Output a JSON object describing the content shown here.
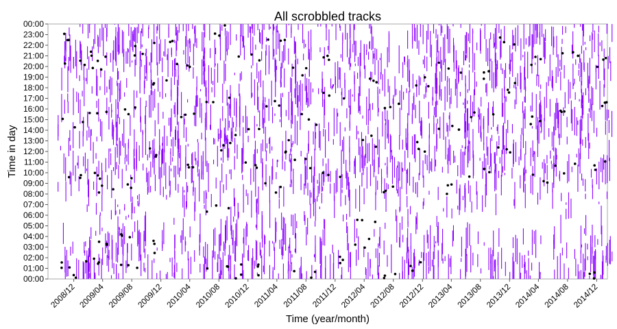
{
  "chart_data": {
    "type": "scatter",
    "title": "All scrobbled tracks",
    "xlabel": "Time (year/month)",
    "ylabel": "Time in day",
    "x_range": [
      "2008-08-15",
      "2015-01-15"
    ],
    "y_range": [
      0,
      24
    ],
    "x_ticks": [
      "2008/12",
      "2009/04",
      "2009/08",
      "2009/12",
      "2010/04",
      "2010/08",
      "2010/12",
      "2011/04",
      "2011/08",
      "2011/12",
      "2012/04",
      "2012/08",
      "2012/12",
      "2013/04",
      "2013/08",
      "2013/12",
      "2014/04",
      "2014/08",
      "2014/12"
    ],
    "y_ticks": [
      "00:00",
      "01:00",
      "02:00",
      "03:00",
      "04:00",
      "05:00",
      "06:00",
      "07:00",
      "08:00",
      "09:00",
      "10:00",
      "11:00",
      "12:00",
      "13:00",
      "14:00",
      "15:00",
      "16:00",
      "17:00",
      "18:00",
      "19:00",
      "20:00",
      "21:00",
      "22:00",
      "23:00",
      "00:00"
    ],
    "grid": false,
    "series": [
      {
        "color": "#8B00FF",
        "points": [
          {
            "month": "2008/12",
            "hours": [
              1.0,
              9.5,
              14.5,
              20.0,
              22.5
            ]
          },
          {
            "month": "2009/04",
            "hours": [
              0.5,
              2.0,
              8.5,
              11.5,
              15.5,
              19.5,
              23.0
            ]
          },
          {
            "month": "2009/08",
            "hours": [
              1.5,
              4.5,
              9.0,
              12.0,
              16.5,
              20.5,
              22.0
            ]
          },
          {
            "month": "2009/12",
            "hours": [
              0.5,
              8.5,
              11.0,
              14.5,
              18.0,
              21.5,
              23.5
            ]
          },
          {
            "month": "2010/04",
            "hours": [
              1.0,
              8.0,
              10.5,
              13.5,
              17.5,
              20.5,
              23.0
            ]
          },
          {
            "month": "2010/08",
            "hours": [
              0.5,
              2.0,
              8.5,
              12.0,
              15.5,
              19.0,
              22.5
            ]
          },
          {
            "month": "2010/12",
            "hours": [
              1.0,
              3.0,
              8.5,
              11.5,
              16.0,
              20.0,
              23.5
            ]
          },
          {
            "month": "2011/04",
            "hours": [
              0.5,
              2.5,
              9.5,
              12.5,
              17.0,
              21.0,
              23.0
            ]
          },
          {
            "month": "2011/08",
            "hours": [
              1.5,
              6.5,
              10.0,
              14.0,
              18.5,
              22.0
            ]
          },
          {
            "month": "2011/12",
            "hours": [
              0.5,
              7.0,
              11.0,
              15.0,
              19.5,
              23.5
            ]
          },
          {
            "month": "2012/04",
            "hours": [
              1.0,
              8.5,
              12.5,
              16.5,
              20.5,
              23.0
            ]
          },
          {
            "month": "2012/08",
            "hours": [
              0.5,
              7.5,
              11.5,
              15.0,
              19.0
            ]
          },
          {
            "month": "2012/12",
            "hours": [
              0.5,
              2.0,
              8.0,
              12.0,
              16.0,
              19.5,
              22.5
            ]
          },
          {
            "month": "2013/04",
            "hours": [
              1.0,
              8.5,
              12.5,
              15.5,
              18.5,
              21.0
            ]
          },
          {
            "month": "2013/08",
            "hours": [
              0.5,
              9.0,
              12.0,
              15.5,
              18.0,
              21.5
            ]
          },
          {
            "month": "2013/12",
            "hours": [
              0.5,
              8.5,
              11.5,
              15.0,
              19.0,
              22.0
            ]
          },
          {
            "month": "2014/04",
            "hours": [
              0.5,
              9.0,
              12.5,
              16.0,
              19.5,
              22.5
            ]
          },
          {
            "month": "2014/08",
            "hours": [
              0.5,
              8.5,
              12.0,
              15.5,
              19.0,
              21.5
            ]
          },
          {
            "month": "2014/12",
            "hours": [
              0.5,
              1.5,
              10.0,
              14.0,
              17.5,
              21.0
            ]
          }
        ]
      },
      {
        "color": "#000000",
        "points": [
          {
            "month": "2008/12",
            "hours": [
              0.5,
              1.5,
              10.0,
              14.5,
              20.5,
              23.0
            ]
          },
          {
            "month": "2009/04",
            "hours": [
              1.5,
              3.0,
              8.5,
              10.0,
              15.5,
              20.0,
              21.5
            ]
          },
          {
            "month": "2009/08",
            "hours": [
              1.5,
              4.5,
              9.0,
              16.0,
              21.5
            ]
          },
          {
            "month": "2009/12",
            "hours": [
              3.0,
              12.0,
              18.5,
              22.0
            ]
          },
          {
            "month": "2010/04",
            "hours": [
              11.0,
              15.5,
              20.5
            ]
          },
          {
            "month": "2010/08",
            "hours": [
              1.0,
              6.5,
              12.5,
              17.0,
              23.5
            ]
          },
          {
            "month": "2010/12",
            "hours": [
              0.5,
              1.5,
              10.5,
              14.0,
              21.0
            ]
          },
          {
            "month": "2011/04",
            "hours": [
              8.5,
              12.5,
              16.5,
              22.0
            ]
          },
          {
            "month": "2011/08",
            "hours": [
              0.5,
              11.0,
              15.0,
              19.5
            ]
          },
          {
            "month": "2011/12",
            "hours": [
              1.5,
              10.0,
              17.5,
              21.0
            ]
          },
          {
            "month": "2012/04",
            "hours": [
              3.5,
              5.5,
              13.0,
              19.0
            ]
          },
          {
            "month": "2012/08",
            "hours": [
              0.5,
              8.5,
              16.5
            ]
          },
          {
            "month": "2012/12",
            "hours": [
              1.0,
              12.5,
              18.5
            ]
          },
          {
            "month": "2013/04",
            "hours": [
              8.5,
              14.5,
              20.0
            ]
          },
          {
            "month": "2013/08",
            "hours": [
              10.0,
              15.5,
              19.0
            ]
          },
          {
            "month": "2013/12",
            "hours": [
              12.5,
              18.0,
              22.5
            ]
          },
          {
            "month": "2014/04",
            "hours": [
              9.5,
              15.0,
              20.5
            ]
          },
          {
            "month": "2014/08",
            "hours": [
              10.5,
              16.0,
              21.5
            ]
          },
          {
            "month": "2014/12",
            "hours": [
              0.5,
              10.5,
              16.5,
              20.5
            ]
          }
        ]
      }
    ]
  }
}
